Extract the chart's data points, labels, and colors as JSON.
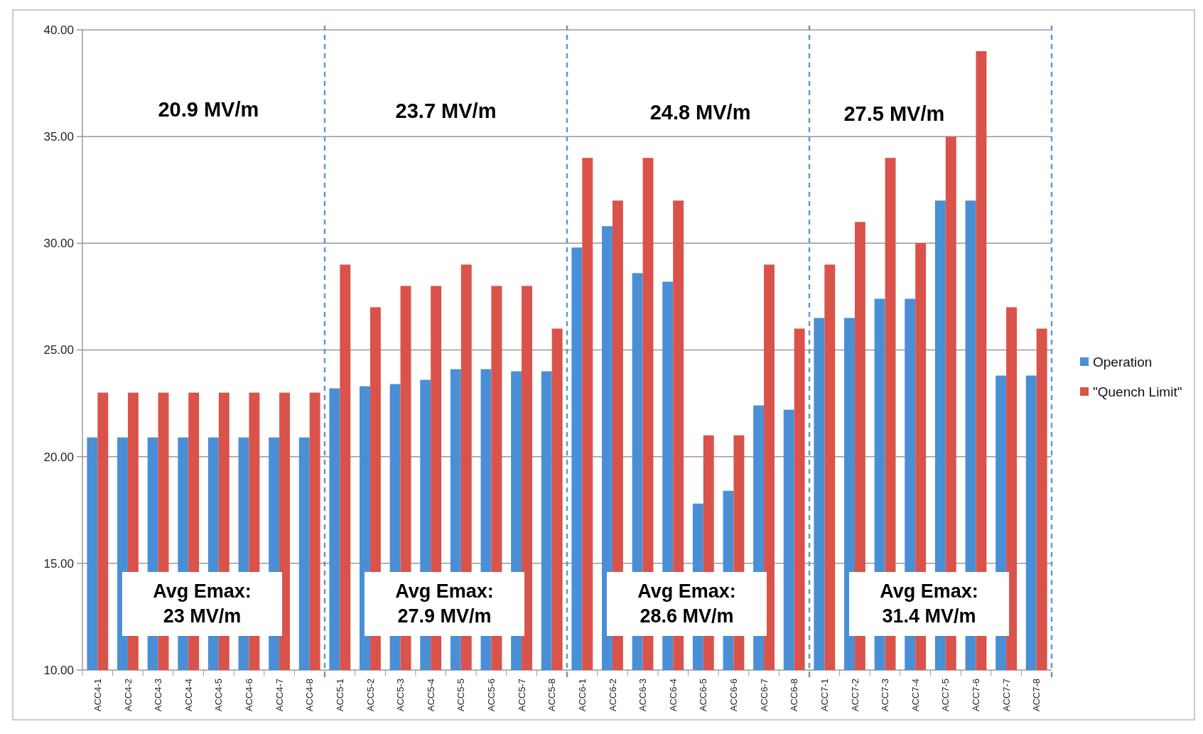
{
  "chart_data": {
    "type": "bar",
    "categories": [
      "ACC4-1",
      "ACC4-2",
      "ACC4-3",
      "ACC4-4",
      "ACC4-5",
      "ACC4-6",
      "ACC4-7",
      "ACC4-8",
      "ACC5-1",
      "ACC5-2",
      "ACC5-3",
      "ACC5-4",
      "ACC5-5",
      "ACC5-6",
      "ACC5-7",
      "ACC5-8",
      "ACC6-1",
      "ACC6-2",
      "ACC6-3",
      "ACC6-4",
      "ACC6-5",
      "ACC6-6",
      "ACC6-7",
      "ACC6-8",
      "ACC7-1",
      "ACC7-2",
      "ACC7-3",
      "ACC7-4",
      "ACC7-5",
      "ACC7-6",
      "ACC7-7",
      "ACC7-8"
    ],
    "series": [
      {
        "name": "Operation",
        "color": "#4a8fd6",
        "values": [
          20.9,
          20.9,
          20.9,
          20.9,
          20.9,
          20.9,
          20.9,
          20.9,
          23.2,
          23.3,
          23.4,
          23.6,
          24.1,
          24.1,
          24.0,
          24.0,
          29.8,
          30.8,
          28.6,
          28.2,
          17.8,
          18.4,
          22.4,
          22.2,
          26.5,
          26.5,
          27.4,
          27.4,
          32,
          32,
          23.8,
          23.8
        ]
      },
      {
        "name": "\"Quench Limit\"",
        "color": "#d9534a",
        "values": [
          23,
          23,
          23,
          23,
          23,
          23,
          23,
          23,
          29,
          27,
          28,
          28,
          29,
          28,
          28,
          26,
          34,
          32,
          34,
          32,
          21,
          21,
          29,
          26,
          29,
          31,
          34,
          30,
          35,
          39,
          27,
          26
        ]
      }
    ],
    "ylim": [
      10,
      40
    ],
    "yticks": [
      {
        "value": 10,
        "label": "10.00"
      },
      {
        "value": 15,
        "label": "15.00"
      },
      {
        "value": 20,
        "label": "20.00"
      },
      {
        "value": 25,
        "label": "25.00"
      },
      {
        "value": 30,
        "label": "30.00"
      },
      {
        "value": 35,
        "label": "35.00"
      },
      {
        "value": 40,
        "label": "40.00"
      }
    ],
    "grid": "y",
    "legend": "right",
    "annotations": [
      "20.9 MV/m",
      "23.7 MV/m",
      "24.8 MV/m",
      "27.5 MV/m",
      "Avg Emax: 23 MV/m",
      "Avg Emax: 27.9 MV/m",
      "Avg Emax: 28.6 MV/m",
      "Avg Emax: 31.4 MV/m"
    ]
  }
}
